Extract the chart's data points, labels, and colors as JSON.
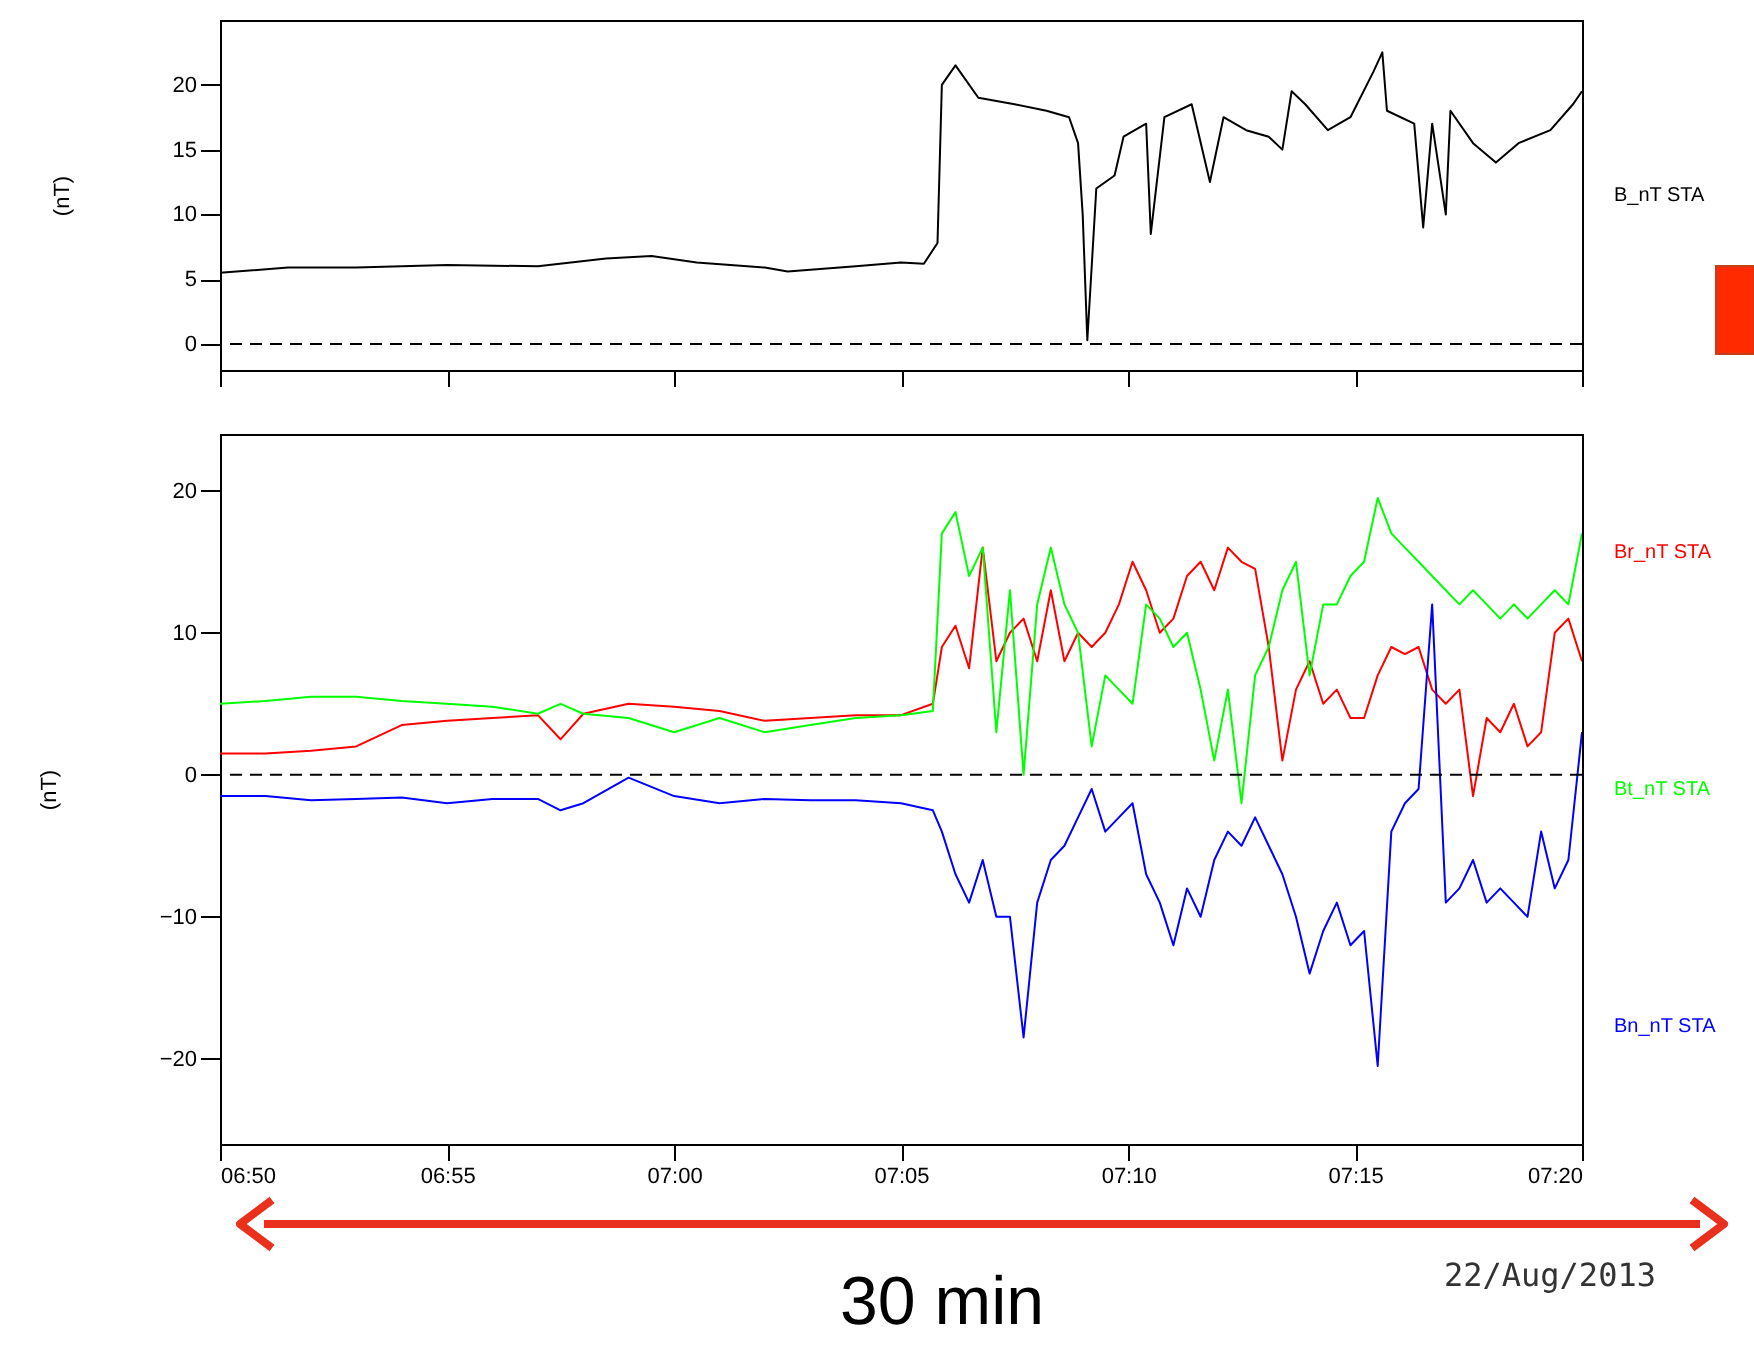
{
  "chart_data": [
    {
      "type": "line",
      "ylabel": "(nT)",
      "xlim": [
        6.8333,
        7.3333
      ],
      "ylim": [
        -2,
        25
      ],
      "yticks": [
        0,
        5,
        10,
        15,
        20
      ],
      "xticks": [
        {
          "value": 6.8333,
          "label": null
        },
        {
          "value": 6.9167,
          "label": null
        },
        {
          "value": 7.0,
          "label": null
        },
        {
          "value": 7.0833,
          "label": null
        },
        {
          "value": 7.1667,
          "label": null
        },
        {
          "value": 7.25,
          "label": null
        },
        {
          "value": 7.3333,
          "label": null
        }
      ],
      "tick_labels": "y",
      "grid": false,
      "legend": false,
      "marker": "none",
      "line_style": "solid",
      "ref_lines": [
        {
          "axis": "y",
          "value": 0,
          "line_style": "dashed",
          "color": "#000000"
        }
      ],
      "x": [
        6.8333,
        6.8583,
        6.8833,
        6.9167,
        6.95,
        6.975,
        6.9917,
        7.0083,
        7.0333,
        7.0417,
        7.0667,
        7.0833,
        7.0917,
        7.0967,
        7.0983,
        7.1033,
        7.1117,
        7.125,
        7.1367,
        7.145,
        7.1483,
        7.15,
        7.1517,
        7.155,
        7.1617,
        7.165,
        7.1733,
        7.175,
        7.18,
        7.19,
        7.1967,
        7.2017,
        7.21,
        7.2183,
        7.2233,
        7.2267,
        7.2317,
        7.24,
        7.2483,
        7.2567,
        7.26,
        7.2617,
        7.2717,
        7.275,
        7.2783,
        7.2833,
        7.285,
        7.2933,
        7.3017,
        7.31,
        7.3217,
        7.33,
        7.3333
      ],
      "series": [
        {
          "name": "B_nT STA",
          "color": "#000000",
          "values": [
            5.5,
            5.9,
            5.9,
            6.1,
            6.0,
            6.6,
            6.8,
            6.3,
            5.9,
            5.6,
            6.0,
            6.3,
            6.2,
            7.8,
            20,
            21.5,
            19,
            18.5,
            18,
            17.5,
            15.5,
            10,
            0.3,
            12,
            13,
            16,
            17,
            8.5,
            17.5,
            18.5,
            12.5,
            17.5,
            16.5,
            16,
            15,
            19.5,
            18.5,
            16.5,
            17.5,
            21,
            22.5,
            18,
            17,
            9,
            17,
            10,
            18,
            15.5,
            14,
            15.5,
            16.5,
            18.5,
            19.5
          ]
        }
      ]
    },
    {
      "type": "line",
      "ylabel": "(nT)",
      "xlim": [
        6.8333,
        7.3333
      ],
      "ylim": [
        -26,
        24
      ],
      "yticks": [
        -20,
        -10,
        0,
        10,
        20
      ],
      "xticks": [
        {
          "value": 6.8333,
          "label": "06:50"
        },
        {
          "value": 6.9167,
          "label": "06:55"
        },
        {
          "value": 7.0,
          "label": "07:00"
        },
        {
          "value": 7.0833,
          "label": "07:05"
        },
        {
          "value": 7.1667,
          "label": "07:10"
        },
        {
          "value": 7.25,
          "label": "07:15"
        },
        {
          "value": 7.3333,
          "label": "07:20"
        }
      ],
      "grid": false,
      "legend": false,
      "marker": "none",
      "line_style": "solid",
      "ref_lines": [
        {
          "axis": "y",
          "value": 0,
          "line_style": "dashed",
          "color": "#000000"
        }
      ],
      "annotations": [
        "30 min",
        "22/Aug/2013"
      ],
      "x": [
        6.8333,
        6.85,
        6.8667,
        6.8833,
        6.9,
        6.9167,
        6.9333,
        6.95,
        6.9583,
        6.9667,
        6.9833,
        7.0,
        7.0167,
        7.0333,
        7.05,
        7.0667,
        7.0833,
        7.095,
        7.0983,
        7.1033,
        7.1083,
        7.1133,
        7.1183,
        7.1233,
        7.1283,
        7.1333,
        7.1383,
        7.1433,
        7.1483,
        7.1533,
        7.1583,
        7.1633,
        7.1683,
        7.1733,
        7.1783,
        7.1833,
        7.1883,
        7.1933,
        7.1983,
        7.2033,
        7.2083,
        7.2133,
        7.2183,
        7.2233,
        7.2283,
        7.2333,
        7.2383,
        7.2433,
        7.2483,
        7.2533,
        7.2583,
        7.2633,
        7.2683,
        7.2733,
        7.2783,
        7.2833,
        7.2883,
        7.2933,
        7.2983,
        7.3033,
        7.3083,
        7.3133,
        7.3183,
        7.3233,
        7.3283,
        7.3333
      ],
      "series": [
        {
          "name": "Br_nT STA",
          "color": "#ff0000",
          "values": [
            1.5,
            1.5,
            1.7,
            2.0,
            3.5,
            3.8,
            4.0,
            4.2,
            2.5,
            4.3,
            5.0,
            4.8,
            4.5,
            3.8,
            4.0,
            4.2,
            4.2,
            5,
            9,
            10.5,
            7.5,
            16,
            8,
            10,
            11,
            8,
            13,
            8,
            10,
            9,
            10,
            12,
            15,
            13,
            10,
            11,
            14,
            15,
            13,
            16,
            15,
            14.5,
            9,
            1,
            6,
            8,
            5,
            6,
            4,
            4,
            7,
            9,
            8.5,
            9,
            6,
            5,
            6,
            -1.5,
            4,
            3,
            5,
            2,
            3,
            10,
            11,
            8
          ]
        },
        {
          "name": "Bt_nT STA",
          "color": "#00ff00",
          "values": [
            5.0,
            5.2,
            5.5,
            5.5,
            5.2,
            5.0,
            4.8,
            4.3,
            5.0,
            4.3,
            4.0,
            3.0,
            4.0,
            3.0,
            3.5,
            4.0,
            4.2,
            4.5,
            17,
            18.5,
            14,
            16,
            3,
            13,
            0,
            12,
            16,
            12,
            10,
            2,
            7,
            6,
            5,
            12,
            11,
            9,
            10,
            6,
            1,
            6,
            -2,
            7,
            9,
            13,
            15,
            7,
            12,
            12,
            14,
            15,
            19.5,
            17,
            16,
            15,
            14,
            13,
            12,
            13,
            12,
            11,
            12,
            11,
            12,
            13,
            12,
            17
          ]
        },
        {
          "name": "Bn_nT STA",
          "color": "#0000ff",
          "values": [
            -1.5,
            -1.5,
            -1.8,
            -1.7,
            -1.6,
            -2.0,
            -1.7,
            -1.7,
            -2.5,
            -2.0,
            -0.2,
            -1.5,
            -2.0,
            -1.7,
            -1.8,
            -1.8,
            -2.0,
            -2.5,
            -4,
            -7,
            -9,
            -6,
            -10,
            -10,
            -18.5,
            -9,
            -6,
            -5,
            -3,
            -1,
            -4,
            -3,
            -2,
            -7,
            -9,
            -12,
            -8,
            -10,
            -6,
            -4,
            -5,
            -3,
            -5,
            -7,
            -10,
            -14,
            -11,
            -9,
            -12,
            -11,
            -20.5,
            -4,
            -2,
            -1,
            12,
            -9,
            -8,
            -6,
            -9,
            -8,
            -9,
            -10,
            -4,
            -8,
            -6,
            3
          ]
        }
      ]
    }
  ]
}
